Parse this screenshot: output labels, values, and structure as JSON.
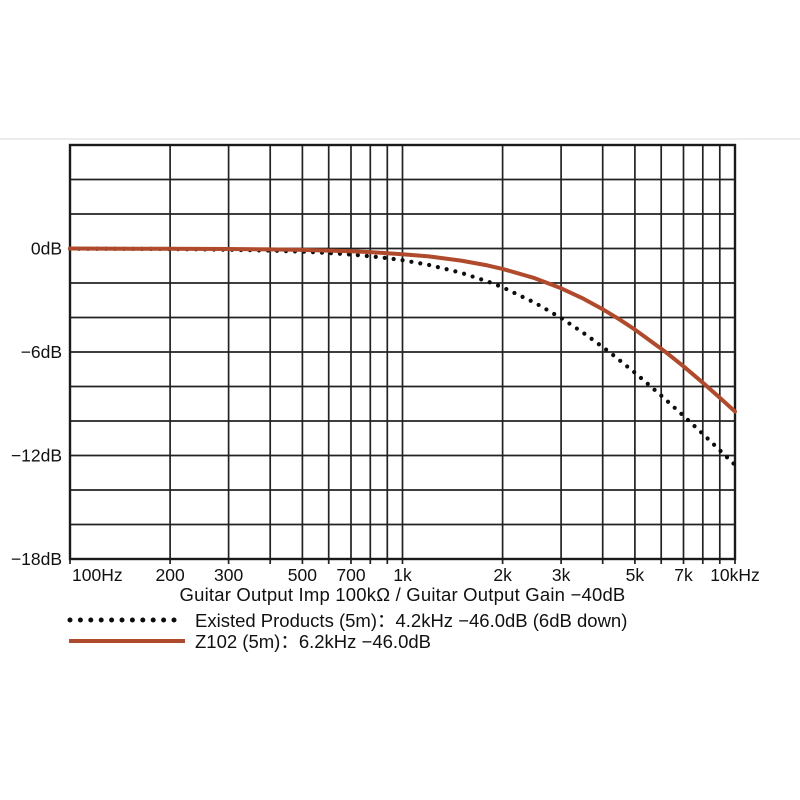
{
  "colors": {
    "background": "#ffffff",
    "grid": "#222222",
    "border": "#1a1a1a",
    "text": "#111111",
    "divider": "#ececec",
    "curve_dotted": "#0d0d0d",
    "curve_solid": "#b04a2c"
  },
  "chart_data": {
    "type": "line",
    "title": "",
    "xlabel": "Guitar Output Imp 100kΩ / Guitar Output Gain −40dB",
    "ylabel": "",
    "x_scale": "log",
    "x_range_hz": [
      100,
      10000
    ],
    "y_range_db": [
      6,
      -18
    ],
    "grid_step_db": 2,
    "grid": "on",
    "legend_position": "bottom-left",
    "x_gridlines_hz": [
      100,
      200,
      300,
      400,
      500,
      600,
      700,
      800,
      900,
      1000,
      2000,
      3000,
      4000,
      5000,
      6000,
      7000,
      8000,
      9000,
      10000
    ],
    "x_tick_labels": [
      {
        "hz": 100,
        "label": "100Hz"
      },
      {
        "hz": 200,
        "label": "200"
      },
      {
        "hz": 300,
        "label": "300"
      },
      {
        "hz": 500,
        "label": "500"
      },
      {
        "hz": 700,
        "label": "700"
      },
      {
        "hz": 1000,
        "label": "1k"
      },
      {
        "hz": 2000,
        "label": "2k"
      },
      {
        "hz": 3000,
        "label": "3k"
      },
      {
        "hz": 5000,
        "label": "5k"
      },
      {
        "hz": 7000,
        "label": "7k"
      },
      {
        "hz": 10000,
        "label": "10kHz"
      }
    ],
    "y_tick_labels": [
      {
        "db": 0,
        "label": "0dB"
      },
      {
        "db": -6,
        "label": "−6dB"
      },
      {
        "db": -12,
        "label": "−12dB"
      },
      {
        "db": -18,
        "label": "−18dB"
      }
    ],
    "series": [
      {
        "key": "existed-products",
        "name": "Existed Products (5m)",
        "spec": "4.2kHz −46.0dB (6dB down)",
        "style": "dotted",
        "color": "#0d0d0d",
        "points_hz_db": [
          [
            100,
            -0.01
          ],
          [
            150,
            -0.02
          ],
          [
            200,
            -0.03
          ],
          [
            250,
            -0.05
          ],
          [
            300,
            -0.07
          ],
          [
            400,
            -0.12
          ],
          [
            500,
            -0.18
          ],
          [
            600,
            -0.26
          ],
          [
            700,
            -0.35
          ],
          [
            800,
            -0.45
          ],
          [
            900,
            -0.56
          ],
          [
            1000,
            -0.68
          ],
          [
            1200,
            -0.95
          ],
          [
            1500,
            -1.41
          ],
          [
            1800,
            -1.91
          ],
          [
            2000,
            -2.25
          ],
          [
            2500,
            -3.14
          ],
          [
            3000,
            -4.03
          ],
          [
            3500,
            -4.89
          ],
          [
            4000,
            -5.71
          ],
          [
            4200,
            -6.02
          ],
          [
            5000,
            -7.2
          ],
          [
            6000,
            -8.53
          ],
          [
            7000,
            -9.7
          ],
          [
            8000,
            -10.75
          ],
          [
            9000,
            -11.7
          ],
          [
            10000,
            -12.55
          ]
        ]
      },
      {
        "key": "z102",
        "name": "Z102 (5m)",
        "spec": "6.2kHz −46.0dB",
        "style": "solid",
        "color": "#b04a2c",
        "points_hz_db": [
          [
            100,
            0
          ],
          [
            150,
            -0.01
          ],
          [
            200,
            -0.01
          ],
          [
            300,
            -0.03
          ],
          [
            400,
            -0.05
          ],
          [
            500,
            -0.08
          ],
          [
            600,
            -0.12
          ],
          [
            700,
            -0.16
          ],
          [
            800,
            -0.21
          ],
          [
            900,
            -0.27
          ],
          [
            1000,
            -0.33
          ],
          [
            1200,
            -0.46
          ],
          [
            1500,
            -0.7
          ],
          [
            1800,
            -0.98
          ],
          [
            2000,
            -1.18
          ],
          [
            2500,
            -1.72
          ],
          [
            3000,
            -2.31
          ],
          [
            3500,
            -2.91
          ],
          [
            4000,
            -3.52
          ],
          [
            4500,
            -4.12
          ],
          [
            5000,
            -4.7
          ],
          [
            6000,
            -5.81
          ],
          [
            6200,
            -6.02
          ],
          [
            7000,
            -6.83
          ],
          [
            8000,
            -7.78
          ],
          [
            9000,
            -8.65
          ],
          [
            10000,
            -9.45
          ]
        ]
      }
    ]
  },
  "legend": {
    "items": [
      {
        "label": "Existed Products (5m)：4.2kHz −46.0dB (6dB down)",
        "style": "dotted",
        "color": "#0d0d0d"
      },
      {
        "label": "Z102 (5m)：6.2kHz −46.0dB",
        "style": "solid",
        "color": "#b04a2c"
      }
    ]
  }
}
